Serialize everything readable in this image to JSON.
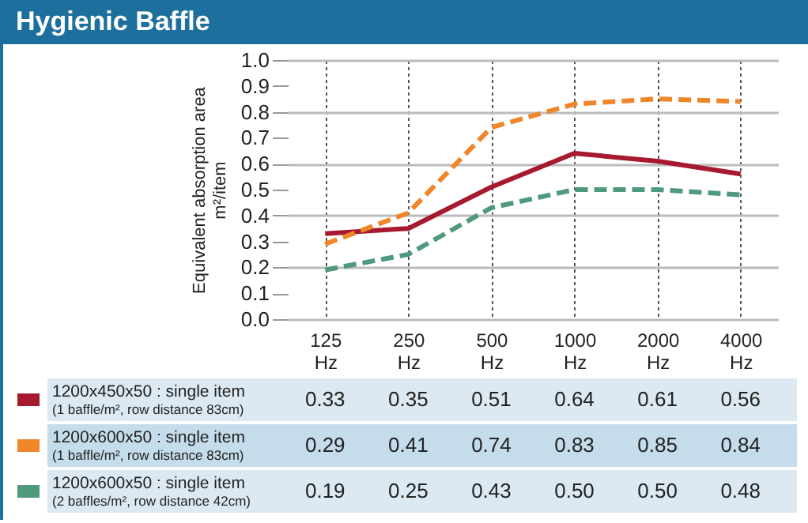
{
  "chart_data": {
    "type": "line",
    "title": "Hygienic Baffle",
    "ylabel": "Equivalent absorption area m²/item",
    "categories": [
      "125 Hz",
      "250 Hz",
      "500 Hz",
      "1000 Hz",
      "2000 Hz",
      "4000 Hz"
    ],
    "ylim": [
      0,
      1
    ],
    "yticks": [
      {
        "value": 0,
        "label": "0.0"
      },
      0.1,
      0.2,
      0.3,
      0.4,
      0.5,
      0.6,
      0.7,
      0.8,
      0.9,
      {
        "value": 1,
        "label": "1.0"
      }
    ],
    "grid": true,
    "legend": "bottom left",
    "series": [
      {
        "name": "1200x450x50 : single item (1 baffle/m², row distance 83cm)",
        "color": "#a6192e",
        "line_style": "solid",
        "values": [
          0.33,
          0.35,
          0.51,
          0.64,
          0.61,
          0.56
        ],
        "value_labels": [
          "0.33",
          "0.35",
          "0.51",
          "0.64",
          "0.61",
          "0.56"
        ]
      },
      {
        "name": "1200x600x50 : single item (1 baffle/m², row distance 83cm)",
        "color": "#f0862a",
        "line_style": "dashed",
        "values": [
          0.29,
          0.41,
          0.74,
          0.83,
          0.85,
          0.84
        ],
        "value_labels": [
          "0.29",
          "0.41",
          "0.74",
          "0.83",
          "0.85",
          "0.84"
        ]
      },
      {
        "name": "1200x600x50 : single item (2 baffles/m², row distance 42cm)",
        "color": "#4e9a7a",
        "line_style": "dashed",
        "values": [
          0.19,
          0.25,
          0.43,
          0.5,
          0.5,
          0.48
        ],
        "value_labels": [
          "0.19",
          "0.25",
          "0.43",
          "0.50",
          "0.50",
          "0.48"
        ]
      }
    ]
  }
}
